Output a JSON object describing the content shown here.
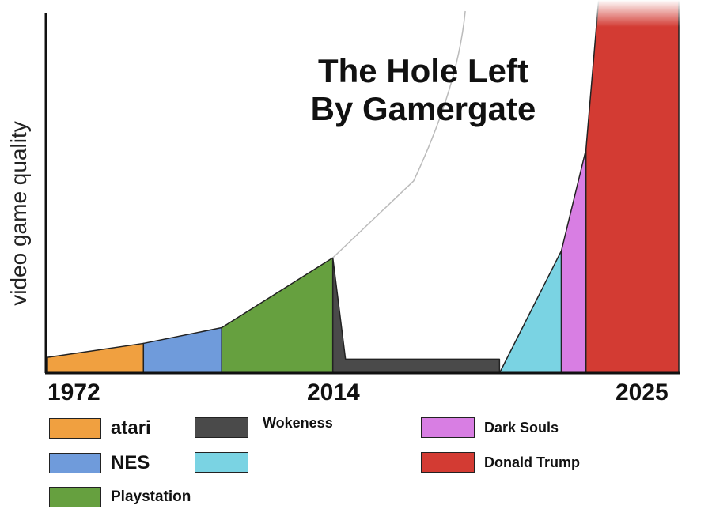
{
  "chart_data": {
    "type": "area",
    "title_lines": [
      "The Hole Left",
      "By Gamergate"
    ],
    "ylabel": "video game quality",
    "xlabel": "",
    "x_tick_labels": [
      "1972",
      "2014",
      "2025"
    ],
    "axis_colors": {
      "axis": "#111111",
      "trend_line": "#bbbbbb"
    },
    "segments": [
      {
        "name": "atari",
        "color": "#F0A040",
        "x_start": 0.0,
        "x_end": 0.152,
        "y_start": 0.045,
        "y_end": 0.085,
        "shape": "trapezoid"
      },
      {
        "name": "NES",
        "color": "#6F9BDB",
        "x_start": 0.152,
        "x_end": 0.276,
        "y_start": 0.085,
        "y_end": 0.13,
        "shape": "trapezoid"
      },
      {
        "name": "Playstation",
        "color": "#66A03F",
        "x_start": 0.276,
        "x_end": 0.452,
        "y_start": 0.13,
        "y_end": 0.33,
        "shape": "trapezoid"
      },
      {
        "name": "Wokeness",
        "color": "#4A4A4A",
        "x_start": 0.452,
        "x_end": 0.716,
        "y_start": 0.33,
        "y_end": 0.04,
        "shape": "drop_then_flat"
      },
      {
        "name": "",
        "color": "#7AD3E3",
        "x_start": 0.716,
        "x_end": 0.814,
        "y_start": 0.0,
        "y_end": 0.35,
        "shape": "triangle"
      },
      {
        "name": "Dark Souls",
        "color": "#D87EE3",
        "x_start": 0.814,
        "x_end": 0.853,
        "y_start": 0.35,
        "y_end": 0.64,
        "shape": "trapezoid"
      },
      {
        "name": "Donald Trump",
        "color": "#D33B33",
        "x_start": 0.853,
        "x_end": 1.0,
        "y_start": 0.64,
        "y_end": 1.05,
        "shape": "tower"
      }
    ],
    "trend_line": {
      "points": [
        [
          0.452,
          0.33
        ],
        [
          0.58,
          0.55
        ],
        [
          0.658,
          1.0
        ]
      ],
      "style": "thin gray curve"
    },
    "legend_position": "bottom",
    "legend": [
      {
        "label": "atari",
        "color": "#F0A040"
      },
      {
        "label": "NES",
        "color": "#6F9BDB"
      },
      {
        "label": "Playstation",
        "color": "#66A03F"
      },
      {
        "label": "Wokeness",
        "color": "#4A4A4A"
      },
      {
        "label": "",
        "color": "#7AD3E3"
      },
      {
        "label": "Dark Souls",
        "color": "#D87EE3"
      },
      {
        "label": "Donald Trump",
        "color": "#D33B33"
      }
    ],
    "grid": false
  }
}
